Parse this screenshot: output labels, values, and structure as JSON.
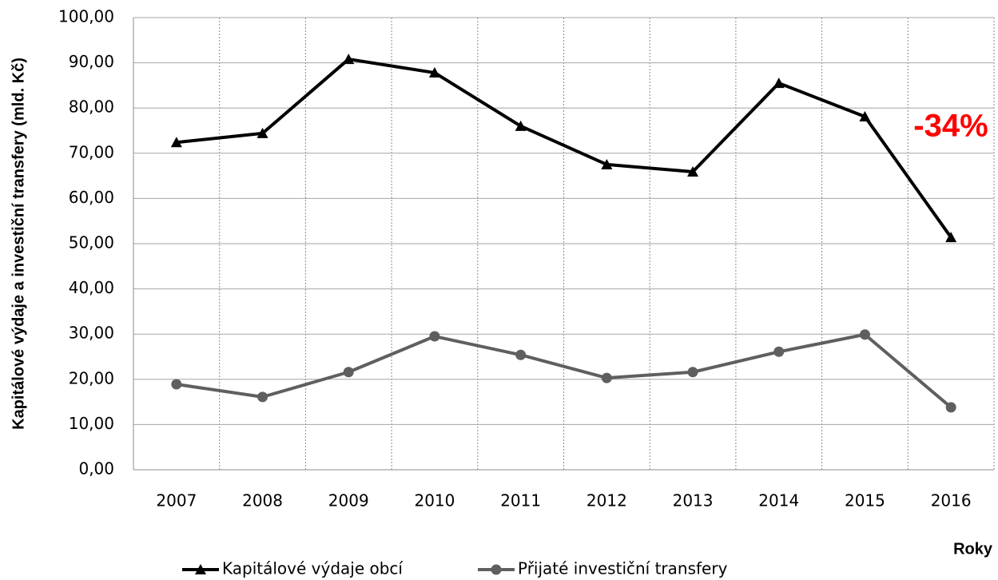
{
  "chart_data": {
    "type": "line",
    "y_label": "Kapitálové výdaje a investiční transfery (mld. Kč)",
    "x_label": "Roky",
    "annotation": "-34%",
    "annotation_color": "#ff0000",
    "categories": [
      "2007",
      "2008",
      "2009",
      "2010",
      "2011",
      "2012",
      "2013",
      "2014",
      "2015",
      "2016"
    ],
    "series": [
      {
        "name": "Kapitálové výdaje obcí",
        "color": "#000000",
        "marker": "triangle",
        "values": [
          72.4,
          74.4,
          90.8,
          87.8,
          76.0,
          67.5,
          65.9,
          85.5,
          78.1,
          51.4
        ]
      },
      {
        "name": "Přijaté investiční transfery",
        "color": "#5f5f5f",
        "marker": "circle",
        "values": [
          18.9,
          16.1,
          21.6,
          29.5,
          25.4,
          20.3,
          21.6,
          26.1,
          29.9,
          13.8
        ]
      }
    ],
    "ylim": [
      0,
      100
    ],
    "yticks": [
      {
        "value": 0,
        "label": "0,00"
      },
      {
        "value": 10,
        "label": "10,00"
      },
      {
        "value": 20,
        "label": "20,00"
      },
      {
        "value": 30,
        "label": "30,00"
      },
      {
        "value": 40,
        "label": "40,00"
      },
      {
        "value": 50,
        "label": "50,00"
      },
      {
        "value": 60,
        "label": "60,00"
      },
      {
        "value": 70,
        "label": "70,00"
      },
      {
        "value": 80,
        "label": "80,00"
      },
      {
        "value": 90,
        "label": "90,00"
      },
      {
        "value": 100,
        "label": "100,00"
      }
    ],
    "grid": true
  }
}
